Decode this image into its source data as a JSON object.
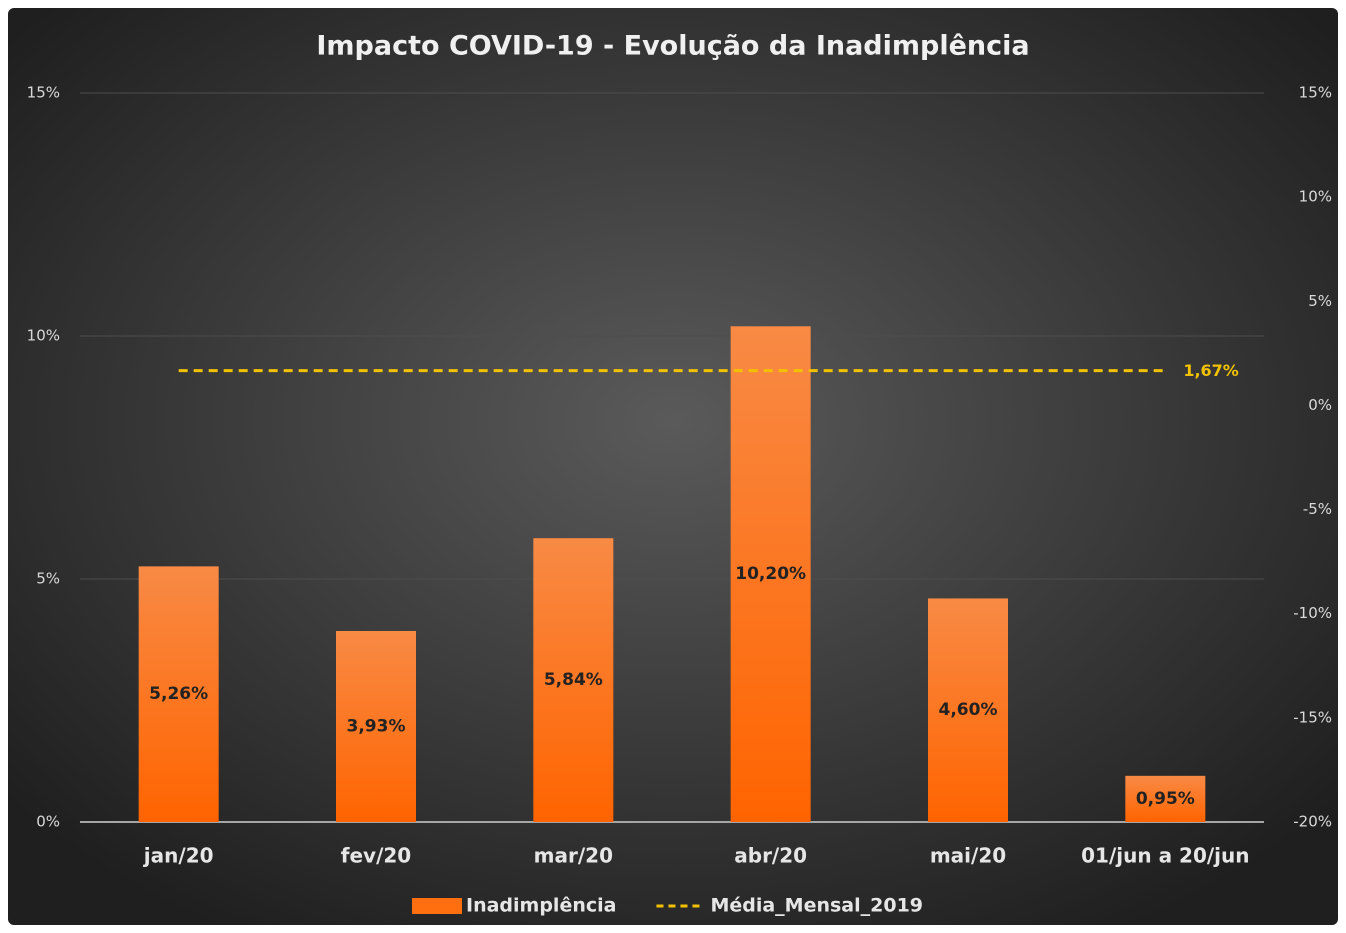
{
  "chart_data": {
    "type": "bar",
    "title": "Impacto COVID-19 - Evolução da Inadimplência",
    "categories": [
      "jan/20",
      "fev/20",
      "mar/20",
      "abr/20",
      "mai/20",
      "01/jun a 20/jun"
    ],
    "series": [
      {
        "name": "Inadimplência",
        "type": "bar",
        "color": "#ff6f0f",
        "values": [
          5.26,
          3.93,
          5.84,
          10.2,
          4.6,
          0.95
        ],
        "value_labels": [
          "5,26%",
          "3,93%",
          "5,84%",
          "10,20%",
          "4,60%",
          "0,95%"
        ]
      },
      {
        "name": "Média_Mensal_2019",
        "type": "line",
        "axis": "y2",
        "color": "#f2c200",
        "values": [
          1.67,
          1.67,
          1.67,
          1.67,
          1.67,
          1.67
        ],
        "value_labels": [
          null,
          null,
          null,
          null,
          null,
          "1,67%"
        ]
      }
    ],
    "ylim": [
      0,
      15
    ],
    "yticks": [
      {
        "value": 0,
        "label": "0%"
      },
      {
        "value": 5,
        "label": "5%"
      },
      {
        "value": 10,
        "label": "10%"
      },
      {
        "value": 15,
        "label": "15%"
      }
    ],
    "y2lim": [
      -20,
      15
    ],
    "y2ticks": [
      {
        "value": -20,
        "label": "-20%"
      },
      {
        "value": -15,
        "label": "-15%"
      },
      {
        "value": -10,
        "label": "-10%"
      },
      {
        "value": -5,
        "label": "-5%"
      },
      {
        "value": 0,
        "label": "0%"
      },
      {
        "value": 5,
        "label": "5%"
      },
      {
        "value": 10,
        "label": "10%"
      },
      {
        "value": 15,
        "label": "15%"
      }
    ],
    "grid": true,
    "legend": "bottom"
  }
}
